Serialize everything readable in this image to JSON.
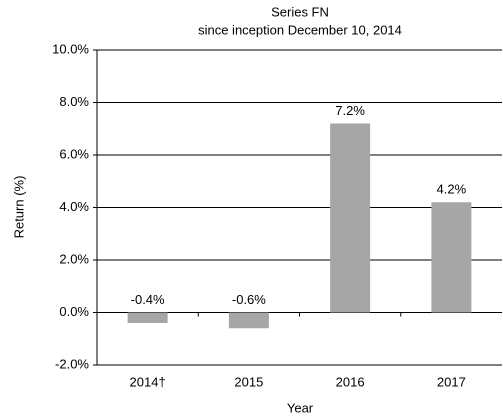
{
  "chart_data": {
    "type": "bar",
    "title": "Series  FN",
    "subtitle": "since inception December 10, 2014",
    "x_label": "Year",
    "y_label": "Return  (%)",
    "categories": [
      "2014†",
      "2015",
      "2016",
      "2017"
    ],
    "values": [
      -0.4,
      -0.6,
      7.2,
      4.2
    ],
    "value_labels": [
      "-0.4%",
      "-0.6%",
      "7.2%",
      "4.2%"
    ],
    "color": "#a6a6a6",
    "ylim": [
      -2,
      10
    ],
    "yticks": [
      {
        "value": -2,
        "label": "-2.0%"
      },
      {
        "value": 0,
        "label": "0.0%"
      },
      {
        "value": 2,
        "label": "2.0%"
      },
      {
        "value": 4,
        "label": "4.0%"
      },
      {
        "value": 6,
        "label": "6.0%"
      },
      {
        "value": 8,
        "label": "8.0%"
      },
      {
        "value": 10,
        "label": "10.0%"
      }
    ],
    "grid": true
  }
}
